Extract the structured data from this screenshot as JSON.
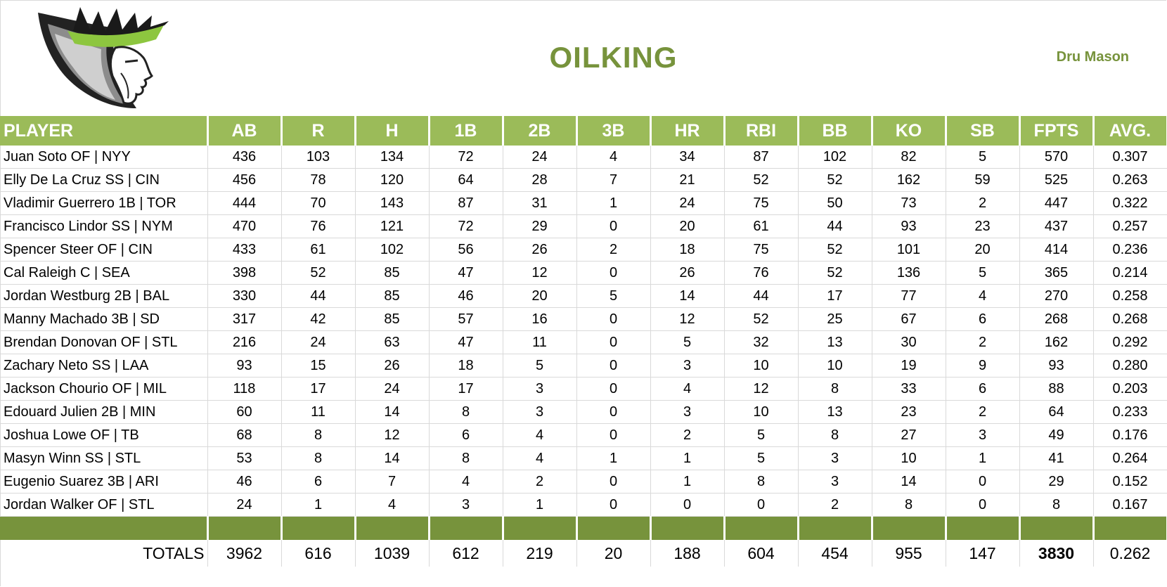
{
  "header": {
    "team_name": "OILKING",
    "owner_name": "Dru Mason"
  },
  "colors": {
    "header_green": "#9bbb59",
    "dark_green": "#77933c"
  },
  "logo": {
    "icon": "crowned-king-logo"
  },
  "table": {
    "columns": [
      "PLAYER",
      "AB",
      "R",
      "H",
      "1B",
      "2B",
      "3B",
      "HR",
      "RBI",
      "BB",
      "KO",
      "SB",
      "FPTS",
      "AVG."
    ],
    "rows": [
      [
        "Juan Soto OF | NYY",
        "436",
        "103",
        "134",
        "72",
        "24",
        "4",
        "34",
        "87",
        "102",
        "82",
        "5",
        "570",
        "0.307"
      ],
      [
        "Elly De La Cruz SS | CIN",
        "456",
        "78",
        "120",
        "64",
        "28",
        "7",
        "21",
        "52",
        "52",
        "162",
        "59",
        "525",
        "0.263"
      ],
      [
        "Vladimir Guerrero 1B | TOR",
        "444",
        "70",
        "143",
        "87",
        "31",
        "1",
        "24",
        "75",
        "50",
        "73",
        "2",
        "447",
        "0.322"
      ],
      [
        "Francisco Lindor SS | NYM",
        "470",
        "76",
        "121",
        "72",
        "29",
        "0",
        "20",
        "61",
        "44",
        "93",
        "23",
        "437",
        "0.257"
      ],
      [
        "Spencer Steer OF | CIN",
        "433",
        "61",
        "102",
        "56",
        "26",
        "2",
        "18",
        "75",
        "52",
        "101",
        "20",
        "414",
        "0.236"
      ],
      [
        "Cal Raleigh C | SEA",
        "398",
        "52",
        "85",
        "47",
        "12",
        "0",
        "26",
        "76",
        "52",
        "136",
        "5",
        "365",
        "0.214"
      ],
      [
        "Jordan Westburg 2B | BAL",
        "330",
        "44",
        "85",
        "46",
        "20",
        "5",
        "14",
        "44",
        "17",
        "77",
        "4",
        "270",
        "0.258"
      ],
      [
        "Manny Machado 3B | SD",
        "317",
        "42",
        "85",
        "57",
        "16",
        "0",
        "12",
        "52",
        "25",
        "67",
        "6",
        "268",
        "0.268"
      ],
      [
        "Brendan Donovan OF | STL",
        "216",
        "24",
        "63",
        "47",
        "11",
        "0",
        "5",
        "32",
        "13",
        "30",
        "2",
        "162",
        "0.292"
      ],
      [
        "Zachary Neto SS | LAA",
        "93",
        "15",
        "26",
        "18",
        "5",
        "0",
        "3",
        "10",
        "10",
        "19",
        "9",
        "93",
        "0.280"
      ],
      [
        "Jackson Chourio OF | MIL",
        "118",
        "17",
        "24",
        "17",
        "3",
        "0",
        "4",
        "12",
        "8",
        "33",
        "6",
        "88",
        "0.203"
      ],
      [
        "Edouard Julien 2B | MIN",
        "60",
        "11",
        "14",
        "8",
        "3",
        "0",
        "3",
        "10",
        "13",
        "23",
        "2",
        "64",
        "0.233"
      ],
      [
        "Joshua Lowe OF | TB",
        "68",
        "8",
        "12",
        "6",
        "4",
        "0",
        "2",
        "5",
        "8",
        "27",
        "3",
        "49",
        "0.176"
      ],
      [
        "Masyn Winn SS | STL",
        "53",
        "8",
        "14",
        "8",
        "4",
        "1",
        "1",
        "5",
        "3",
        "10",
        "1",
        "41",
        "0.264"
      ],
      [
        "Eugenio Suarez 3B | ARI",
        "46",
        "6",
        "7",
        "4",
        "2",
        "0",
        "1",
        "8",
        "3",
        "14",
        "0",
        "29",
        "0.152"
      ],
      [
        "Jordan Walker OF | STL",
        "24",
        "1",
        "4",
        "3",
        "1",
        "0",
        "0",
        "0",
        "2",
        "8",
        "0",
        "8",
        "0.167"
      ]
    ],
    "totals": [
      "TOTALS",
      "3962",
      "616",
      "1039",
      "612",
      "219",
      "20",
      "188",
      "604",
      "454",
      "955",
      "147",
      "3830",
      "0.262"
    ]
  }
}
